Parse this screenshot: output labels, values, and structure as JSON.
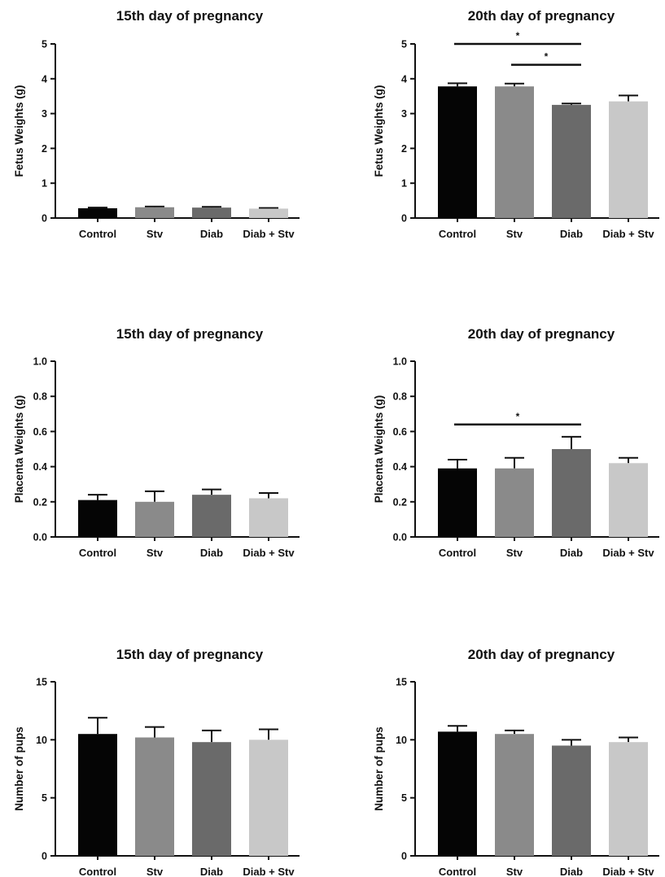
{
  "chart_data": [
    {
      "type": "bar",
      "title": "15th day of pregnancy",
      "ylabel": "Fetus Weights (g)",
      "categories": [
        "Control",
        "Stv",
        "Diab",
        "Diab + Stv"
      ],
      "values": [
        0.28,
        0.31,
        0.3,
        0.27
      ],
      "errors": [
        0.02,
        0.02,
        0.02,
        0.02
      ],
      "ylim": [
        0,
        5
      ],
      "yticks": [
        "0",
        "1",
        "2",
        "3",
        "4",
        "5"
      ],
      "colors": [
        "#050505",
        "#8a8a8a",
        "#6a6a6a",
        "#c8c8c8"
      ],
      "significance": []
    },
    {
      "type": "bar",
      "title": "20th day of pregnancy",
      "ylabel": "Fetus Weights (g)",
      "categories": [
        "Control",
        "Stv",
        "Diab",
        "Diab + Stv"
      ],
      "values": [
        3.78,
        3.78,
        3.25,
        3.35
      ],
      "errors": [
        0.09,
        0.08,
        0.04,
        0.17
      ],
      "ylim": [
        0,
        5
      ],
      "yticks": [
        "0",
        "1",
        "2",
        "3",
        "4",
        "5"
      ],
      "colors": [
        "#050505",
        "#8a8a8a",
        "#6a6a6a",
        "#c8c8c8"
      ],
      "significance": [
        {
          "from": 0,
          "to": 2,
          "y": 5.0,
          "label": "*"
        },
        {
          "from": 1,
          "to": 2,
          "y": 4.4,
          "label": "*"
        }
      ]
    },
    {
      "type": "bar",
      "title": "15th day of pregnancy",
      "ylabel": "Placenta Weights (g)",
      "categories": [
        "Control",
        "Stv",
        "Diab",
        "Diab + Stv"
      ],
      "values": [
        0.21,
        0.2,
        0.24,
        0.22
      ],
      "errors": [
        0.03,
        0.06,
        0.03,
        0.03
      ],
      "ylim": [
        0,
        1.0
      ],
      "yticks": [
        "0.0",
        "0.2",
        "0.4",
        "0.6",
        "0.8",
        "1.0"
      ],
      "colors": [
        "#050505",
        "#8a8a8a",
        "#6a6a6a",
        "#c8c8c8"
      ],
      "significance": []
    },
    {
      "type": "bar",
      "title": "20th day of pregnancy",
      "ylabel": "Placenta Weights (g)",
      "categories": [
        "Control",
        "Stv",
        "Diab",
        "Diab + Stv"
      ],
      "values": [
        0.39,
        0.39,
        0.5,
        0.42
      ],
      "errors": [
        0.05,
        0.06,
        0.07,
        0.03
      ],
      "ylim": [
        0,
        1.0
      ],
      "yticks": [
        "0.0",
        "0.2",
        "0.4",
        "0.6",
        "0.8",
        "1.0"
      ],
      "colors": [
        "#050505",
        "#8a8a8a",
        "#6a6a6a",
        "#c8c8c8"
      ],
      "significance": [
        {
          "from": 0,
          "to": 2,
          "y": 0.64,
          "label": "*"
        }
      ]
    },
    {
      "type": "bar",
      "title": "15th day of pregnancy",
      "ylabel": "Number of pups",
      "categories": [
        "Control",
        "Stv",
        "Diab",
        "Diab + Stv"
      ],
      "values": [
        10.5,
        10.2,
        9.8,
        10.0
      ],
      "errors": [
        1.4,
        0.9,
        1.0,
        0.9
      ],
      "ylim": [
        0,
        15
      ],
      "yticks": [
        "0",
        "5",
        "10",
        "15"
      ],
      "colors": [
        "#050505",
        "#8a8a8a",
        "#6a6a6a",
        "#c8c8c8"
      ],
      "significance": []
    },
    {
      "type": "bar",
      "title": "20th day of pregnancy",
      "ylabel": "Number of pups",
      "categories": [
        "Control",
        "Stv",
        "Diab",
        "Diab + Stv"
      ],
      "values": [
        10.7,
        10.5,
        9.5,
        9.8
      ],
      "errors": [
        0.5,
        0.3,
        0.5,
        0.4
      ],
      "ylim": [
        0,
        15
      ],
      "yticks": [
        "0",
        "5",
        "10",
        "15"
      ],
      "colors": [
        "#050505",
        "#8a8a8a",
        "#6a6a6a",
        "#c8c8c8"
      ],
      "significance": []
    }
  ]
}
